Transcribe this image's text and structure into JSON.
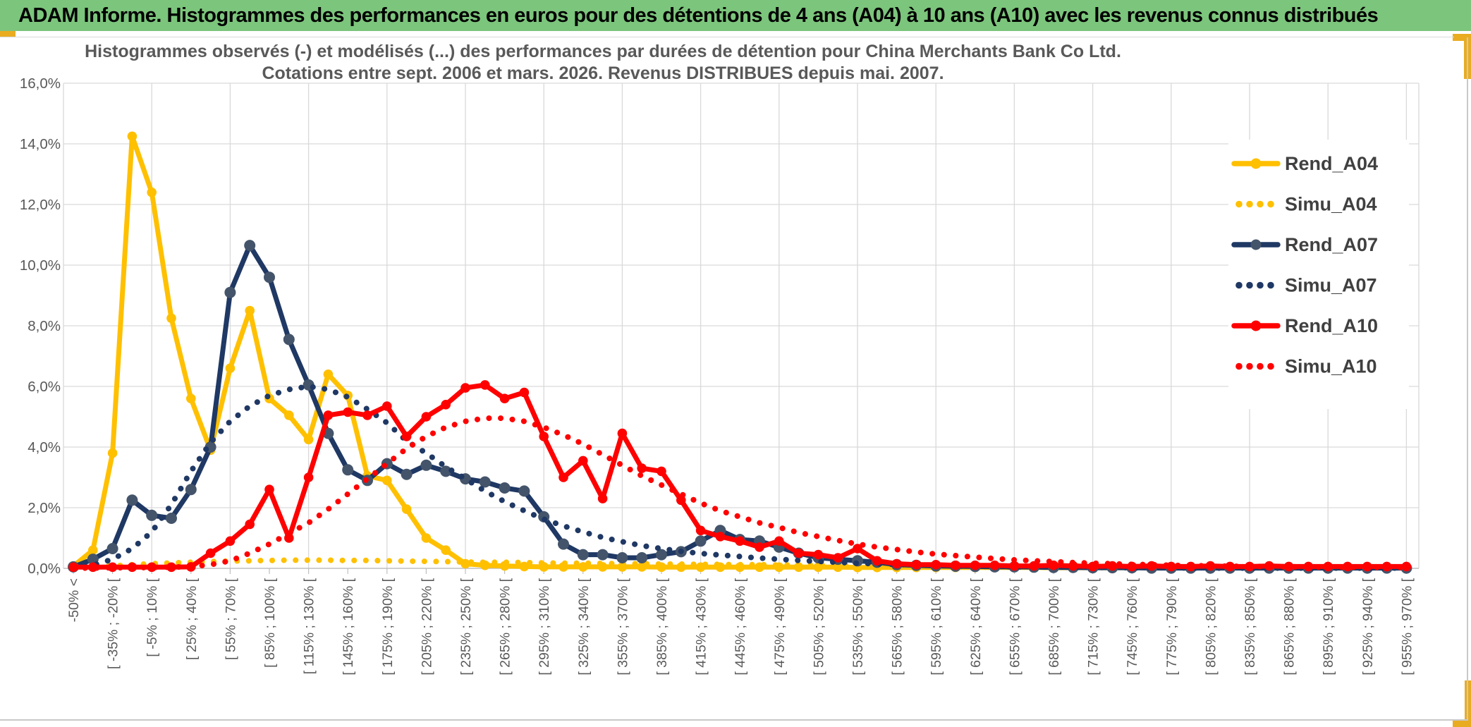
{
  "app": {
    "title": "ADAM Informe. Histogrammes des performances en euros pour des détentions de 4 ans (A04) à 10 ans (A10) avec les revenus connus distribués"
  },
  "colors": {
    "title_bar_bg": "#7CC57C",
    "accent_gold": "#E9AC21",
    "grid": "#D9D9D9",
    "axis": "#BFBFBF",
    "text_grey": "#595959",
    "legend_text": "#404040",
    "series_gold": "#FFC000",
    "series_navy": "#1F3864",
    "series_navy_marker": "#44546A",
    "series_red": "#FF0000"
  },
  "chart_data": {
    "type": "line",
    "title_lines": [
      "Histogrammes observés (-) et modélisés (...) des performances par durées de détention pour China Merchants Bank Co Ltd.",
      "Cotations entre sept. 2006 et mars. 2026. Revenus DISTRIBUES depuis mai. 2007."
    ],
    "y_axis": {
      "min": 0,
      "max": 16,
      "step": 2,
      "tick_labels": [
        "0,0%",
        "2,0%",
        "4,0%",
        "6,0%",
        "8,0%",
        "10,0%",
        "12,0%",
        "14,0%",
        "16,0%"
      ]
    },
    "x_axis": {
      "note": "bins of 15% width; a label is shown for every second bin (69 bins total)",
      "labels": [
        "-50% <",
        "[ -35% ; -20% [",
        "[ -5% ; 10% [",
        "[ 25% ; 40% [",
        "[ 55% ; 70% [",
        "[ 85% ; 100% [",
        "[ 115% ; 130% [",
        "[ 145% ; 160% [",
        "[ 175% ; 190% [",
        "[ 205% ; 220% [",
        "[ 235% ; 250% [",
        "[ 265% ; 280% [",
        "[ 295% ; 310% [",
        "[ 325% ; 340% [",
        "[ 355% ; 370% [",
        "[ 385% ; 400% [",
        "[ 415% ; 430% [",
        "[ 445% ; 460% [",
        "[ 475% ; 490% [",
        "[ 505% ; 520% [",
        "[ 535% ; 550% [",
        "[ 565% ; 580% [",
        "[ 595% ; 610% [",
        "[ 625% ; 640% [",
        "[ 655% ; 670% [",
        "[ 685% ; 700% [",
        "[ 715% ; 730% [",
        "[ 745% ; 760% [",
        "[ 775% ; 790% [",
        "[ 805% ; 820% [",
        "[ 835% ; 850% [",
        "[ 865% ; 880% [",
        "[ 895% ; 910% [",
        "[ 925% ; 940% [",
        "[ 955% ; 970% ["
      ]
    },
    "legend_position": "inside-top-right",
    "grid": true,
    "series": [
      {
        "name": "Rend_A04",
        "style": "solid",
        "color": "#FFC000",
        "marker_color": "#FFC000",
        "values": [
          0.07,
          0.6,
          3.8,
          14.25,
          12.4,
          8.25,
          5.6,
          3.9,
          6.6,
          8.5,
          5.6,
          5.05,
          4.25,
          6.4,
          5.7,
          3.05,
          2.9,
          1.95,
          1.0,
          0.6,
          0.15,
          0.1,
          0.08,
          0.06,
          0.05,
          0.05,
          0.05,
          0.05,
          0.05,
          0.05,
          0.04,
          0.04,
          0.04,
          0.04,
          0.04,
          0.04,
          0.04,
          0.04,
          0.04,
          0.04,
          0.03,
          0.03,
          0.03,
          0.03,
          0.03,
          0.03,
          0.03,
          0.03,
          0.03,
          0.03,
          0.02,
          0.02,
          0.02,
          0.02,
          0.02,
          0.02,
          0.02,
          0.02,
          0.02,
          0.02,
          0.02,
          0.02,
          0.02,
          0.02,
          0.02,
          0.02,
          0.02,
          0.02,
          0.02
        ]
      },
      {
        "name": "Simu_A04",
        "style": "dotted",
        "color": "#FFC000",
        "values": [
          0.02,
          0.05,
          0.08,
          0.12,
          0.15,
          0.18,
          0.2,
          0.22,
          0.24,
          0.25,
          0.26,
          0.27,
          0.27,
          0.27,
          0.26,
          0.26,
          0.25,
          0.24,
          0.23,
          0.22,
          0.21,
          0.2,
          0.2,
          0.19,
          0.18,
          0.17,
          0.17,
          0.16,
          0.15,
          0.15,
          0.14,
          0.14,
          0.13,
          0.13,
          0.12,
          0.12,
          0.11,
          0.11,
          0.1,
          0.1,
          0.1,
          0.09,
          0.09,
          0.08,
          0.08,
          0.08,
          0.07,
          0.07,
          0.07,
          0.06,
          0.06,
          0.06,
          0.05,
          0.05,
          0.05,
          0.05,
          0.04,
          0.04,
          0.04,
          0.04,
          0.03,
          0.03,
          0.03,
          0.03,
          0.03,
          0.02,
          0.02,
          0.02,
          0.02
        ]
      },
      {
        "name": "Rend_A07",
        "style": "solid",
        "color": "#1F3864",
        "marker_color": "#44546A",
        "values": [
          0.05,
          0.3,
          0.65,
          2.25,
          1.75,
          1.65,
          2.6,
          4.0,
          9.1,
          10.65,
          9.6,
          7.55,
          6.05,
          4.45,
          3.25,
          2.9,
          3.45,
          3.1,
          3.4,
          3.2,
          2.95,
          2.85,
          2.65,
          2.55,
          1.7,
          0.8,
          0.45,
          0.45,
          0.35,
          0.35,
          0.45,
          0.55,
          0.9,
          1.25,
          0.95,
          0.9,
          0.7,
          0.5,
          0.35,
          0.3,
          0.25,
          0.2,
          0.12,
          0.1,
          0.08,
          0.07,
          0.06,
          0.05,
          0.05,
          0.04,
          0.03,
          0.03,
          0.02,
          0.02,
          0.02,
          0.01,
          0.01,
          0.01,
          0.01,
          0.01,
          0.01,
          0.01,
          0.01,
          0.01,
          0.01,
          0.01,
          0.01,
          0.01,
          0.01
        ]
      },
      {
        "name": "Simu_A07",
        "style": "dotted",
        "color": "#1F3864",
        "values": [
          0.03,
          0.1,
          0.3,
          0.65,
          1.2,
          2.1,
          3.2,
          4.15,
          4.85,
          5.35,
          5.7,
          5.9,
          6.0,
          5.9,
          5.65,
          5.25,
          4.8,
          4.2,
          3.8,
          3.35,
          2.95,
          2.55,
          2.2,
          1.9,
          1.62,
          1.4,
          1.2,
          1.02,
          0.88,
          0.75,
          0.65,
          0.56,
          0.49,
          0.44,
          0.39,
          0.34,
          0.3,
          0.26,
          0.23,
          0.2,
          0.17,
          0.15,
          0.13,
          0.11,
          0.1,
          0.08,
          0.07,
          0.06,
          0.05,
          0.05,
          0.04,
          0.04,
          0.03,
          0.03,
          0.02,
          0.02,
          0.02,
          0.01,
          0.01,
          0.01,
          0.01,
          0.01,
          0.01,
          0.01,
          0.01,
          0.01,
          0.01,
          0.01,
          0.01
        ]
      },
      {
        "name": "Rend_A10",
        "style": "solid",
        "color": "#FF0000",
        "marker_color": "#FF0000",
        "values": [
          0.04,
          0.04,
          0.04,
          0.04,
          0.04,
          0.04,
          0.05,
          0.5,
          0.9,
          1.45,
          2.6,
          1.0,
          3.0,
          5.05,
          5.15,
          5.05,
          5.35,
          4.35,
          5.0,
          5.4,
          5.95,
          6.05,
          5.6,
          5.8,
          4.35,
          3.0,
          3.55,
          2.3,
          4.45,
          3.3,
          3.2,
          2.25,
          1.25,
          1.05,
          0.9,
          0.7,
          0.9,
          0.5,
          0.45,
          0.35,
          0.65,
          0.25,
          0.15,
          0.12,
          0.12,
          0.1,
          0.1,
          0.1,
          0.08,
          0.08,
          0.1,
          0.08,
          0.06,
          0.08,
          0.06,
          0.08,
          0.06,
          0.06,
          0.08,
          0.06,
          0.06,
          0.08,
          0.06,
          0.06,
          0.06,
          0.06,
          0.06,
          0.06,
          0.06
        ]
      },
      {
        "name": "Simu_A10",
        "style": "dotted",
        "color": "#FF0000",
        "values": [
          0.01,
          0.01,
          0.02,
          0.02,
          0.03,
          0.04,
          0.06,
          0.12,
          0.25,
          0.5,
          0.8,
          1.15,
          1.5,
          1.95,
          2.45,
          2.95,
          3.45,
          3.95,
          4.35,
          4.65,
          4.85,
          4.95,
          4.95,
          4.85,
          4.65,
          4.4,
          4.1,
          3.75,
          3.4,
          3.05,
          2.75,
          2.45,
          2.15,
          1.9,
          1.7,
          1.5,
          1.35,
          1.18,
          1.05,
          0.92,
          0.8,
          0.7,
          0.62,
          0.54,
          0.47,
          0.42,
          0.37,
          0.32,
          0.28,
          0.25,
          0.22,
          0.19,
          0.17,
          0.15,
          0.13,
          0.12,
          0.1,
          0.09,
          0.08,
          0.07,
          0.06,
          0.06,
          0.05,
          0.05,
          0.04,
          0.04,
          0.04,
          0.03,
          0.03
        ]
      }
    ]
  }
}
